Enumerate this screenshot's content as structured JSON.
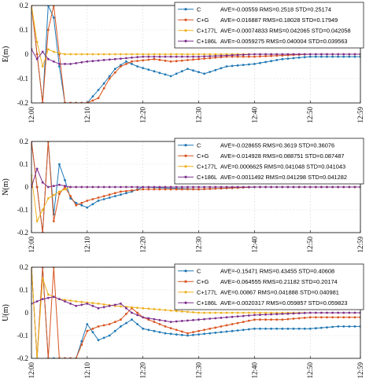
{
  "colors": {
    "C": "#1f77b4",
    "C+G": "#d9531e",
    "C+177L": "#edb120",
    "C+186L": "#7e2f8e"
  },
  "chart_data": [
    {
      "type": "line",
      "ylabel": "E(m)",
      "ylim": [
        -0.2,
        0.2
      ],
      "yticks": [
        "0.2",
        "0.1",
        "0",
        "-0.1",
        "-0.2"
      ],
      "xticks": [
        "12:00",
        "12:10",
        "12:20",
        "12:30",
        "12:40",
        "12:50",
        "12:59"
      ],
      "x_range": [
        "12:00",
        "12:59"
      ],
      "grid": true,
      "legend_position": "top-right",
      "series": [
        {
          "name": "C",
          "stats": "AVE=-0.00559  RMS=0.2518  STD=0.25174",
          "points": [
            [
              "12:00",
              0.2
            ],
            [
              "12:02",
              -0.2
            ],
            [
              "12:03",
              0.2
            ],
            [
              "12:04",
              0.15
            ],
            [
              "12:05",
              -0.05
            ],
            [
              "12:06",
              -0.2
            ],
            [
              "12:07",
              -0.2
            ],
            [
              "12:10",
              -0.2
            ],
            [
              "12:13",
              -0.12
            ],
            [
              "12:15",
              -0.06
            ],
            [
              "12:17",
              -0.03
            ],
            [
              "12:19",
              -0.05
            ],
            [
              "12:22",
              -0.07
            ],
            [
              "12:25",
              -0.09
            ],
            [
              "12:28",
              -0.06
            ],
            [
              "12:31",
              -0.08
            ],
            [
              "12:35",
              -0.05
            ],
            [
              "12:40",
              -0.04
            ],
            [
              "12:45",
              -0.02
            ],
            [
              "12:50",
              -0.01
            ],
            [
              "12:55",
              -0.01
            ],
            [
              "12:59",
              -0.01
            ]
          ]
        },
        {
          "name": "C+G",
          "stats": "AVE=-0.016887  RMS=0.18028  STD=0.17949",
          "points": [
            [
              "12:00",
              0.2
            ],
            [
              "12:02",
              -0.2
            ],
            [
              "12:03",
              0.1
            ],
            [
              "12:04",
              0.2
            ],
            [
              "12:05",
              0.0
            ],
            [
              "12:06",
              -0.2
            ],
            [
              "12:10",
              -0.2
            ],
            [
              "12:12",
              -0.18
            ],
            [
              "12:14",
              -0.1
            ],
            [
              "12:16",
              -0.05
            ],
            [
              "12:18",
              -0.03
            ],
            [
              "12:22",
              -0.02
            ],
            [
              "12:25",
              -0.03
            ],
            [
              "12:30",
              -0.02
            ],
            [
              "12:35",
              -0.01
            ],
            [
              "12:40",
              -0.01
            ],
            [
              "12:50",
              0.0
            ],
            [
              "12:59",
              0.0
            ]
          ]
        },
        {
          "name": "C+177L",
          "stats": "AVE=-0.00074833  RMS=0.042065  STD=0.042058",
          "points": [
            [
              "12:00",
              0.2
            ],
            [
              "12:01",
              0.05
            ],
            [
              "12:02",
              -0.05
            ],
            [
              "12:03",
              0.02
            ],
            [
              "12:04",
              0.01
            ],
            [
              "12:06",
              0.0
            ],
            [
              "12:10",
              0.0
            ],
            [
              "12:20",
              0.0
            ],
            [
              "12:30",
              0.0
            ],
            [
              "12:40",
              0.0
            ],
            [
              "12:50",
              0.0
            ],
            [
              "12:59",
              0.0
            ]
          ]
        },
        {
          "name": "C+186L",
          "stats": "AVE=-0.0059275  RMS=0.040004  STD=0.039563",
          "points": [
            [
              "12:00",
              0.02
            ],
            [
              "12:01",
              -0.02
            ],
            [
              "12:02",
              0.01
            ],
            [
              "12:03",
              -0.02
            ],
            [
              "12:05",
              -0.04
            ],
            [
              "12:07",
              -0.04
            ],
            [
              "12:10",
              -0.03
            ],
            [
              "12:15",
              -0.02
            ],
            [
              "12:20",
              -0.01
            ],
            [
              "12:30",
              -0.01
            ],
            [
              "12:40",
              0.0
            ],
            [
              "12:50",
              0.0
            ],
            [
              "12:59",
              0.0
            ]
          ]
        }
      ]
    },
    {
      "type": "line",
      "ylabel": "N(m)",
      "ylim": [
        -0.2,
        0.2
      ],
      "yticks": [
        "0.2",
        "0.1",
        "0",
        "-0.1",
        "-0.2"
      ],
      "xticks": [
        "12:00",
        "12:10",
        "12:20",
        "12:30",
        "12:40",
        "12:50",
        "12:59"
      ],
      "x_range": [
        "12:00",
        "12:59"
      ],
      "grid": true,
      "legend_position": "top-right",
      "series": [
        {
          "name": "C",
          "stats": "AVE=-0.028655  RMS=0.3619  STD=0.36076",
          "points": [
            [
              "12:00",
              0.2
            ],
            [
              "12:02",
              -0.2
            ],
            [
              "12:03",
              0.2
            ],
            [
              "12:04",
              -0.12
            ],
            [
              "12:05",
              0.1
            ],
            [
              "12:06",
              0.03
            ],
            [
              "12:07",
              -0.05
            ],
            [
              "12:08",
              -0.07
            ],
            [
              "12:10",
              -0.09
            ],
            [
              "12:12",
              -0.06
            ],
            [
              "12:15",
              -0.04
            ],
            [
              "12:18",
              -0.02
            ],
            [
              "12:20",
              0.0
            ],
            [
              "12:30",
              -0.01
            ],
            [
              "12:40",
              0.0
            ],
            [
              "12:50",
              0.0
            ],
            [
              "12:59",
              0.0
            ]
          ]
        },
        {
          "name": "C+G",
          "stats": "AVE=-0.014928  RMS=0.088751  STD=0.087487",
          "points": [
            [
              "12:00",
              0.2
            ],
            [
              "12:02",
              -0.2
            ],
            [
              "12:03",
              0.2
            ],
            [
              "12:04",
              -0.15
            ],
            [
              "12:05",
              -0.03
            ],
            [
              "12:06",
              0.0
            ],
            [
              "12:08",
              -0.08
            ],
            [
              "12:10",
              -0.06
            ],
            [
              "12:13",
              -0.04
            ],
            [
              "12:16",
              -0.02
            ],
            [
              "12:20",
              -0.01
            ],
            [
              "12:30",
              -0.01
            ],
            [
              "12:40",
              0.0
            ],
            [
              "12:50",
              0.0
            ],
            [
              "12:59",
              0.0
            ]
          ]
        },
        {
          "name": "C+177L",
          "stats": "AVE=0.0006625  RMS=0.041048  STD=0.041043",
          "points": [
            [
              "12:00",
              0.05
            ],
            [
              "12:01",
              -0.15
            ],
            [
              "12:02",
              -0.1
            ],
            [
              "12:03",
              -0.05
            ],
            [
              "12:05",
              -0.02
            ],
            [
              "12:07",
              0.0
            ],
            [
              "12:10",
              0.0
            ],
            [
              "12:20",
              0.0
            ],
            [
              "12:30",
              0.0
            ],
            [
              "12:40",
              0.0
            ],
            [
              "12:50",
              0.0
            ],
            [
              "12:59",
              0.0
            ]
          ]
        },
        {
          "name": "C+186L",
          "stats": "AVE=-0.0011492  RMS=0.041298  STD=0.041282",
          "points": [
            [
              "12:00",
              0.0
            ],
            [
              "12:01",
              0.08
            ],
            [
              "12:02",
              0.02
            ],
            [
              "12:03",
              0.0
            ],
            [
              "12:05",
              0.01
            ],
            [
              "12:07",
              0.0
            ],
            [
              "12:10",
              0.0
            ],
            [
              "12:20",
              0.0
            ],
            [
              "12:30",
              0.0
            ],
            [
              "12:40",
              0.0
            ],
            [
              "12:50",
              0.0
            ],
            [
              "12:59",
              0.0
            ]
          ]
        }
      ]
    },
    {
      "type": "line",
      "ylabel": "U(m)",
      "ylim": [
        -0.2,
        0.2
      ],
      "yticks": [
        "0.2",
        "0.1",
        "0",
        "-0.1",
        "-0.2"
      ],
      "xticks": [
        "12:00",
        "12:10",
        "12:20",
        "12:30",
        "12:40",
        "12:50",
        "12:59"
      ],
      "x_range": [
        "12:00",
        "12:59"
      ],
      "grid": true,
      "legend_position": "top-right",
      "series": [
        {
          "name": "C",
          "stats": "AVE=-0.15471  RMS=0.43455  STD=0.40608",
          "points": [
            [
              "12:00",
              0.2
            ],
            [
              "12:01",
              -0.2
            ],
            [
              "12:02",
              0.2
            ],
            [
              "12:03",
              -0.2
            ],
            [
              "12:08",
              -0.2
            ],
            [
              "12:10",
              -0.05
            ],
            [
              "12:12",
              -0.12
            ],
            [
              "12:14",
              -0.1
            ],
            [
              "12:16",
              -0.06
            ],
            [
              "12:18",
              -0.03
            ],
            [
              "12:20",
              -0.07
            ],
            [
              "12:24",
              -0.09
            ],
            [
              "12:28",
              -0.1
            ],
            [
              "12:32",
              -0.09
            ],
            [
              "12:36",
              -0.08
            ],
            [
              "12:40",
              -0.07
            ],
            [
              "12:45",
              -0.07
            ],
            [
              "12:50",
              -0.07
            ],
            [
              "12:55",
              -0.06
            ],
            [
              "12:59",
              -0.06
            ]
          ]
        },
        {
          "name": "C+G",
          "stats": "AVE=-0.064555  RMS=0.21182  STD=0.20174",
          "points": [
            [
              "12:00",
              0.2
            ],
            [
              "12:01",
              -0.2
            ],
            [
              "12:02",
              0.2
            ],
            [
              "12:03",
              -0.2
            ],
            [
              "12:04",
              0.2
            ],
            [
              "12:05",
              -0.2
            ],
            [
              "12:08",
              -0.2
            ],
            [
              "12:10",
              -0.08
            ],
            [
              "12:12",
              -0.06
            ],
            [
              "12:14",
              -0.05
            ],
            [
              "12:16",
              -0.03
            ],
            [
              "12:18",
              0.02
            ],
            [
              "12:20",
              -0.02
            ],
            [
              "12:24",
              -0.06
            ],
            [
              "12:28",
              -0.09
            ],
            [
              "12:32",
              -0.07
            ],
            [
              "12:36",
              -0.05
            ],
            [
              "12:40",
              -0.03
            ],
            [
              "12:45",
              -0.03
            ],
            [
              "12:50",
              -0.02
            ],
            [
              "12:55",
              -0.02
            ],
            [
              "12:59",
              -0.02
            ]
          ]
        },
        {
          "name": "C+177L",
          "stats": "AVE=0.00867  RMS=0.041888  STD=0.040981",
          "points": [
            [
              "12:00",
              0.2
            ],
            [
              "12:01",
              -0.2
            ],
            [
              "12:02",
              0.15
            ],
            [
              "12:03",
              0.08
            ],
            [
              "12:05",
              0.06
            ],
            [
              "12:08",
              0.05
            ],
            [
              "12:12",
              0.04
            ],
            [
              "12:15",
              0.03
            ],
            [
              "12:20",
              0.02
            ],
            [
              "12:30",
              0.0
            ],
            [
              "12:40",
              0.0
            ],
            [
              "12:50",
              0.0
            ],
            [
              "12:59",
              0.0
            ]
          ]
        },
        {
          "name": "C+186L",
          "stats": "AVE=-0.0020317  RMS=0.059857  STD=0.059823",
          "points": [
            [
              "12:00",
              0.04
            ],
            [
              "12:02",
              0.06
            ],
            [
              "12:04",
              0.07
            ],
            [
              "12:06",
              0.05
            ],
            [
              "12:08",
              0.03
            ],
            [
              "12:10",
              0.04
            ],
            [
              "12:12",
              0.02
            ],
            [
              "12:14",
              0.03
            ],
            [
              "12:16",
              0.04
            ],
            [
              "12:18",
              0.0
            ],
            [
              "12:20",
              -0.02
            ],
            [
              "12:25",
              -0.04
            ],
            [
              "12:30",
              -0.03
            ],
            [
              "12:35",
              -0.02
            ],
            [
              "12:40",
              -0.01
            ],
            [
              "12:50",
              0.0
            ],
            [
              "12:59",
              0.0
            ]
          ]
        }
      ]
    }
  ]
}
